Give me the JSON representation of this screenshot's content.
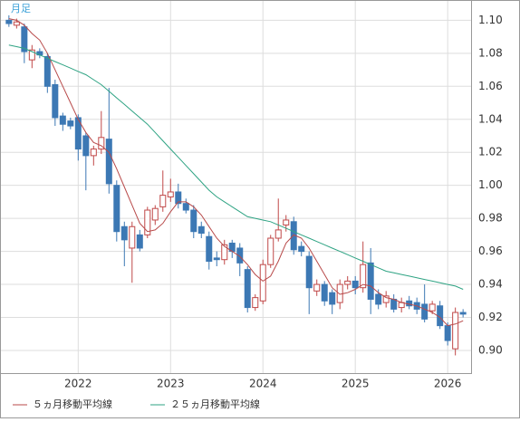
{
  "chart_data": {
    "type": "candlestick",
    "label": "月足",
    "x": [
      0,
      1,
      2,
      3,
      4,
      5,
      6,
      7,
      8,
      9,
      10,
      11,
      12,
      13,
      14,
      15,
      16,
      17,
      18,
      19,
      20,
      21,
      22,
      23,
      24,
      25,
      26,
      27,
      28,
      29,
      30,
      31,
      32,
      33,
      34,
      35,
      36,
      37,
      38,
      39,
      40,
      41,
      42,
      43,
      44,
      45,
      46,
      47,
      48,
      49,
      50,
      51,
      52,
      53,
      54,
      55,
      56,
      57,
      58,
      59
    ],
    "xlim": [
      -1.1,
      60.1
    ],
    "xticks": [
      {
        "value": 9,
        "label": "2022"
      },
      {
        "value": 21,
        "label": "2023"
      },
      {
        "value": 33,
        "label": "2024"
      },
      {
        "value": 45,
        "label": "2025"
      },
      {
        "value": 57,
        "label": "2026"
      }
    ],
    "ylim": [
      0.886,
      1.112
    ],
    "yticks": [
      {
        "value": 0.9,
        "label": "0.90"
      },
      0.92,
      0.94,
      0.96,
      0.98,
      {
        "value": 1.0,
        "label": "1.00"
      },
      1.02,
      1.04,
      1.06,
      1.08,
      {
        "value": 1.1,
        "label": "1.10"
      }
    ],
    "grid": true,
    "candles": {
      "up_color": "#c04848",
      "down_color": "#3c78b4",
      "open": [
        1.1,
        1.097,
        1.096,
        1.076,
        1.081,
        1.078,
        1.061,
        1.042,
        1.039,
        1.041,
        1.03,
        1.018,
        1.022,
        1.028,
        1.0,
        0.975,
        0.962,
        0.97,
        0.97,
        0.979,
        0.987,
        0.993,
        0.996,
        0.989,
        0.985,
        0.975,
        0.969,
        0.956,
        0.955,
        0.965,
        0.962,
        0.949,
        0.926,
        0.93,
        0.952,
        0.968,
        0.976,
        0.978,
        0.963,
        0.957,
        0.936,
        0.94,
        0.935,
        0.929,
        0.94,
        0.942,
        0.938,
        0.953,
        0.934,
        0.929,
        0.931,
        0.926,
        0.93,
        0.929,
        0.928,
        0.924,
        0.927,
        0.915,
        0.901,
        0.923
      ],
      "high": [
        1.103,
        1.101,
        1.098,
        1.085,
        1.083,
        1.08,
        1.064,
        1.044,
        1.041,
        1.043,
        1.032,
        1.024,
        1.045,
        1.059,
        1.003,
        0.978,
        0.978,
        0.973,
        0.987,
        0.988,
        1.009,
        1.004,
        1.001,
        0.992,
        0.988,
        0.978,
        0.972,
        0.96,
        0.967,
        0.967,
        0.965,
        0.951,
        0.934,
        0.955,
        0.97,
        0.992,
        0.982,
        0.981,
        0.966,
        0.96,
        0.943,
        0.942,
        0.937,
        0.943,
        0.945,
        0.945,
        0.966,
        0.962,
        0.937,
        0.936,
        0.934,
        0.932,
        0.933,
        0.932,
        0.94,
        0.93,
        0.93,
        0.917,
        0.926,
        0.925
      ],
      "low": [
        1.096,
        1.095,
        1.074,
        1.071,
        1.077,
        1.056,
        1.036,
        1.033,
        1.034,
        1.015,
        0.997,
        1.012,
        1.019,
        0.995,
        0.966,
        0.951,
        0.941,
        0.96,
        0.968,
        0.976,
        0.984,
        0.99,
        0.986,
        0.983,
        0.968,
        0.968,
        0.949,
        0.951,
        0.952,
        0.956,
        0.945,
        0.923,
        0.924,
        0.928,
        0.95,
        0.966,
        0.972,
        0.958,
        0.957,
        0.922,
        0.933,
        0.927,
        0.922,
        0.925,
        0.937,
        0.934,
        0.935,
        0.922,
        0.925,
        0.926,
        0.923,
        0.923,
        0.925,
        0.922,
        0.917,
        0.922,
        0.913,
        0.903,
        0.897,
        0.92
      ],
      "close": [
        1.098,
        1.099,
        1.081,
        1.082,
        1.079,
        1.06,
        1.041,
        1.037,
        1.036,
        1.022,
        1.018,
        1.022,
        1.029,
        1.001,
        0.972,
        0.967,
        0.975,
        0.962,
        0.985,
        0.986,
        0.994,
        0.996,
        0.989,
        0.985,
        0.972,
        0.971,
        0.954,
        0.955,
        0.964,
        0.96,
        0.953,
        0.926,
        0.932,
        0.952,
        0.968,
        0.973,
        0.979,
        0.961,
        0.96,
        0.938,
        0.94,
        0.93,
        0.928,
        0.94,
        0.942,
        0.938,
        0.952,
        0.931,
        0.928,
        0.933,
        0.925,
        0.929,
        0.927,
        0.925,
        0.919,
        0.928,
        0.915,
        0.906,
        0.923,
        0.922
      ]
    },
    "series": [
      {
        "name": "５ヵ月移動平均線",
        "color": "#b84a4a",
        "values": [
          1.101,
          1.1,
          1.097,
          1.092,
          1.088,
          1.08,
          1.07,
          1.06,
          1.05,
          1.04,
          1.032,
          1.026,
          1.024,
          1.02,
          1.01,
          0.999,
          0.988,
          0.977,
          0.972,
          0.973,
          0.977,
          0.984,
          0.99,
          0.99,
          0.987,
          0.982,
          0.975,
          0.968,
          0.963,
          0.96,
          0.957,
          0.952,
          0.946,
          0.942,
          0.945,
          0.954,
          0.965,
          0.97,
          0.968,
          0.962,
          0.954,
          0.946,
          0.938,
          0.934,
          0.935,
          0.937,
          0.94,
          0.939,
          0.935,
          0.932,
          0.931,
          0.929,
          0.928,
          0.927,
          0.925,
          0.923,
          0.92,
          0.915,
          0.916,
          0.918
        ]
      },
      {
        "name": "２５ヵ月移動平均線",
        "color": "#2ea383",
        "values": [
          1.085,
          1.084,
          1.083,
          1.081,
          1.079,
          1.077,
          1.075,
          1.073,
          1.071,
          1.069,
          1.067,
          1.064,
          1.061,
          1.057,
          1.053,
          1.049,
          1.045,
          1.041,
          1.037,
          1.032,
          1.027,
          1.022,
          1.017,
          1.012,
          1.007,
          1.002,
          0.997,
          0.993,
          0.99,
          0.987,
          0.984,
          0.981,
          0.98,
          0.979,
          0.978,
          0.976,
          0.974,
          0.972,
          0.97,
          0.968,
          0.966,
          0.964,
          0.962,
          0.96,
          0.958,
          0.956,
          0.954,
          0.952,
          0.95,
          0.948,
          0.947,
          0.946,
          0.945,
          0.944,
          0.943,
          0.942,
          0.941,
          0.94,
          0.939,
          0.937
        ]
      }
    ]
  }
}
